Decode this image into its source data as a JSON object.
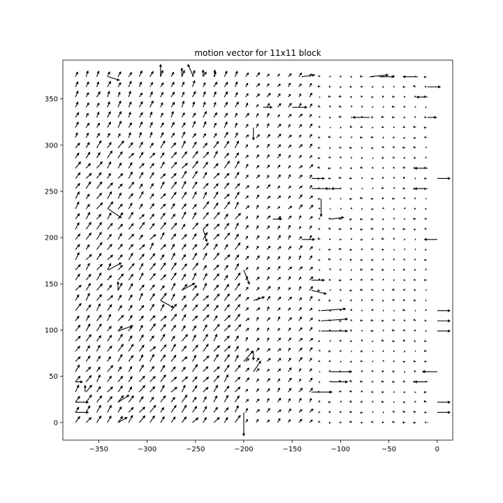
{
  "chart_data": {
    "type": "quiver",
    "title": "motion vector for 11x11 block",
    "xlabel": "",
    "ylabel": "",
    "xlim": [
      -387,
      16
    ],
    "ylim": [
      -19,
      392
    ],
    "xticks": [
      -350,
      -300,
      -250,
      -200,
      -150,
      -100,
      -50,
      0
    ],
    "xtick_labels": [
      "−350",
      "−300",
      "−250",
      "−200",
      "−150",
      "−100",
      "−50",
      "0"
    ],
    "yticks": [
      0,
      50,
      100,
      150,
      200,
      250,
      300,
      350
    ],
    "ytick_labels": [
      "0",
      "50",
      "100",
      "150",
      "200",
      "250",
      "300",
      "350"
    ],
    "grid": {
      "x_start": -374,
      "x_step": 11,
      "x_count": 34,
      "y_start": 0,
      "y_step": 11,
      "y_count": 35
    },
    "boundary_x": -200,
    "regions": [
      {
        "name": "left-background",
        "dx": 5,
        "dy": 7
      },
      {
        "name": "right-background",
        "dx": -2,
        "dy": 0.5
      }
    ],
    "highlight_vectors": [
      {
        "x": -374,
        "y": 11,
        "dx": 14,
        "dy": 0
      },
      {
        "x": -374,
        "y": 22,
        "dx": 14,
        "dy": 0
      },
      {
        "x": -374,
        "y": 44,
        "dx": 8,
        "dy": 0
      },
      {
        "x": -364,
        "y": 33,
        "dx": 0,
        "dy": 8
      },
      {
        "x": -330,
        "y": 22,
        "dx": 12,
        "dy": 8
      },
      {
        "x": -330,
        "y": 0,
        "dx": 10,
        "dy": 6
      },
      {
        "x": -330,
        "y": 99,
        "dx": 16,
        "dy": 6
      },
      {
        "x": -340,
        "y": 165,
        "dx": 14,
        "dy": 8
      },
      {
        "x": -330,
        "y": 143,
        "dx": 0,
        "dy": 10
      },
      {
        "x": -340,
        "y": 231,
        "dx": 14,
        "dy": -10
      },
      {
        "x": -286,
        "y": 132,
        "dx": 14,
        "dy": -8
      },
      {
        "x": -264,
        "y": 143,
        "dx": 14,
        "dy": 8
      },
      {
        "x": -242,
        "y": 209,
        "dx": 4,
        "dy": -14
      },
      {
        "x": -200,
        "y": 66,
        "dx": 10,
        "dy": 12
      },
      {
        "x": -200,
        "y": 165,
        "dx": 6,
        "dy": -16
      },
      {
        "x": -190,
        "y": 77,
        "dx": 0,
        "dy": -10
      },
      {
        "x": -190,
        "y": 55,
        "dx": 8,
        "dy": 12
      },
      {
        "x": -190,
        "y": 132,
        "dx": 12,
        "dy": 4
      },
      {
        "x": -200,
        "y": 11,
        "dx": 0,
        "dy": -26
      },
      {
        "x": -120,
        "y": 99,
        "dx": 28,
        "dy": 0
      },
      {
        "x": -120,
        "y": 110,
        "dx": 28,
        "dy": 2
      },
      {
        "x": -120,
        "y": 121,
        "dx": 26,
        "dy": 2
      },
      {
        "x": -110,
        "y": 55,
        "dx": 22,
        "dy": 0
      },
      {
        "x": -110,
        "y": 44,
        "dx": 18,
        "dy": 0
      },
      {
        "x": -130,
        "y": 33,
        "dx": 22,
        "dy": 0
      },
      {
        "x": -130,
        "y": 143,
        "dx": 16,
        "dy": -4
      },
      {
        "x": -130,
        "y": 154,
        "dx": 14,
        "dy": 0
      },
      {
        "x": -120,
        "y": 242,
        "dx": 0,
        "dy": -20
      },
      {
        "x": -130,
        "y": 253,
        "dx": 18,
        "dy": 0
      },
      {
        "x": -130,
        "y": 264,
        "dx": 14,
        "dy": 0
      },
      {
        "x": -140,
        "y": 198,
        "dx": 14,
        "dy": 0
      },
      {
        "x": -110,
        "y": 220,
        "dx": 14,
        "dy": 2
      },
      {
        "x": -100,
        "y": 253,
        "dx": -10,
        "dy": 0
      },
      {
        "x": -70,
        "y": 330,
        "dx": -18,
        "dy": 0
      },
      {
        "x": -140,
        "y": 374,
        "dx": 14,
        "dy": 2
      },
      {
        "x": -150,
        "y": 341,
        "dx": 16,
        "dy": 0
      },
      {
        "x": -170,
        "y": 220,
        "dx": 10,
        "dy": 0
      },
      {
        "x": -180,
        "y": 341,
        "dx": 10,
        "dy": 0
      },
      {
        "x": -190,
        "y": 319,
        "dx": 0,
        "dy": -14
      },
      {
        "x": -70,
        "y": 374,
        "dx": 20,
        "dy": 2
      },
      {
        "x": -60,
        "y": 374,
        "dx": 16,
        "dy": 0
      },
      {
        "x": -20,
        "y": 374,
        "dx": -16,
        "dy": 0
      },
      {
        "x": -10,
        "y": 363,
        "dx": 14,
        "dy": 0
      },
      {
        "x": -10,
        "y": 352,
        "dx": -12,
        "dy": 0
      },
      {
        "x": -10,
        "y": 330,
        "dx": 10,
        "dy": 0
      },
      {
        "x": -10,
        "y": 275,
        "dx": -14,
        "dy": 0
      },
      {
        "x": 0,
        "y": 264,
        "dx": 14,
        "dy": 0
      },
      {
        "x": -10,
        "y": 253,
        "dx": -14,
        "dy": 0
      },
      {
        "x": 0,
        "y": 198,
        "dx": -14,
        "dy": 0
      },
      {
        "x": 0,
        "y": 121,
        "dx": 14,
        "dy": 0
      },
      {
        "x": 0,
        "y": 110,
        "dx": 14,
        "dy": 0
      },
      {
        "x": 0,
        "y": 99,
        "dx": 14,
        "dy": 0
      },
      {
        "x": 0,
        "y": 55,
        "dx": -16,
        "dy": 0
      },
      {
        "x": 0,
        "y": 22,
        "dx": 14,
        "dy": 0
      },
      {
        "x": 0,
        "y": 11,
        "dx": 14,
        "dy": 0
      },
      {
        "x": -10,
        "y": 44,
        "dx": -14,
        "dy": 0
      },
      {
        "x": -10,
        "y": 0,
        "dx": 0,
        "dy": 0
      },
      {
        "x": -286,
        "y": 374,
        "dx": 0,
        "dy": 14
      },
      {
        "x": -264,
        "y": 374,
        "dx": 0,
        "dy": 10
      },
      {
        "x": -252,
        "y": 374,
        "dx": -6,
        "dy": 14
      },
      {
        "x": -242,
        "y": 374,
        "dx": 0,
        "dy": 8
      },
      {
        "x": -230,
        "y": 374,
        "dx": 0,
        "dy": 8
      },
      {
        "x": -340,
        "y": 374,
        "dx": 12,
        "dy": -4
      }
    ]
  }
}
